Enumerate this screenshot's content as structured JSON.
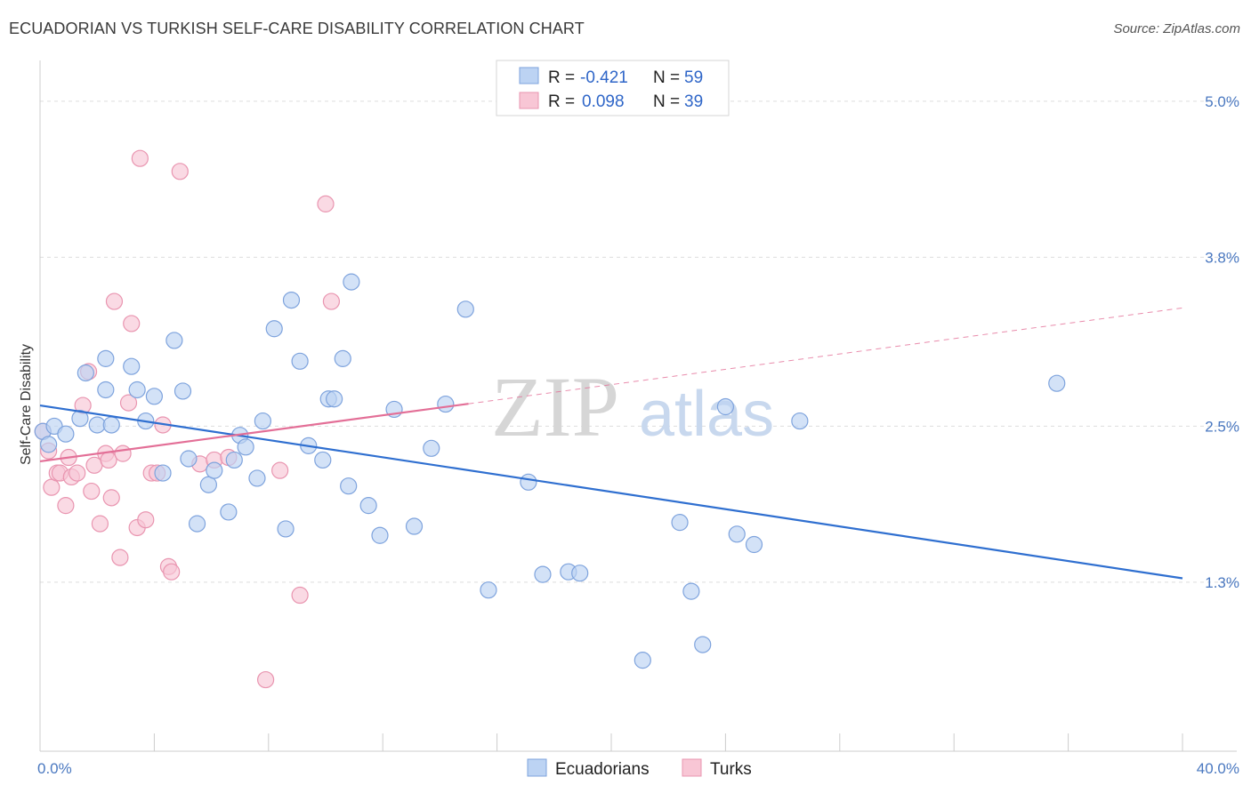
{
  "title": "ECUADORIAN VS TURKISH SELF-CARE DISABILITY CORRELATION CHART",
  "source": "Source: ZipAtlas.com",
  "watermark": {
    "zip": "ZIP",
    "atlas": "atlas"
  },
  "colors": {
    "ecuadorians_fill": "#bcd3f3",
    "ecuadorians_stroke": "#7ea3dd",
    "ecuadorians_line": "#2f6fd0",
    "turks_fill": "#f8c6d5",
    "turks_stroke": "#e995b0",
    "turks_line": "#e36f97",
    "tick_text": "#4a78c0",
    "grid": "#dddddd"
  },
  "legend": {
    "rows": [
      {
        "r_label": "R =",
        "r_value": "-0.421",
        "n_label": "N =",
        "n_value": "59"
      },
      {
        "r_label": "R =",
        "r_value": "0.098",
        "n_label": "N =",
        "n_value": "39"
      }
    ]
  },
  "bottom_legend": [
    "Ecuadorians",
    "Turks"
  ],
  "chart_data": {
    "type": "scatter",
    "ylabel": "Self-Care Disability",
    "xlim": [
      0,
      40
    ],
    "ylim": [
      0.0,
      5.3
    ],
    "x_tick_labels": [
      {
        "value": 0,
        "label": "0.0%"
      },
      {
        "value": 40,
        "label": "40.0%"
      }
    ],
    "y_tick_labels": [
      {
        "value": 1.3,
        "label": "1.3%"
      },
      {
        "value": 2.5,
        "label": "2.5%"
      },
      {
        "value": 3.8,
        "label": "3.8%"
      },
      {
        "value": 5.0,
        "label": "5.0%"
      }
    ],
    "x_minor_ticks": [
      0,
      4,
      8,
      12,
      16,
      20,
      24,
      28,
      32,
      36,
      40
    ],
    "grid": true,
    "series": [
      {
        "name": "Ecuadorians",
        "r": -0.421,
        "n": 59,
        "trend": {
          "x": [
            0,
            40
          ],
          "y": [
            2.66,
            1.33
          ]
        },
        "points": [
          [
            0.1,
            2.46
          ],
          [
            0.3,
            2.36
          ],
          [
            0.5,
            2.5
          ],
          [
            0.9,
            2.44
          ],
          [
            1.4,
            2.56
          ],
          [
            1.6,
            2.91
          ],
          [
            2.0,
            2.51
          ],
          [
            2.3,
            2.78
          ],
          [
            2.5,
            2.51
          ],
          [
            2.3,
            3.02
          ],
          [
            3.2,
            2.96
          ],
          [
            3.4,
            2.78
          ],
          [
            3.7,
            2.54
          ],
          [
            4.0,
            2.73
          ],
          [
            4.3,
            2.14
          ],
          [
            4.7,
            3.16
          ],
          [
            5.0,
            2.77
          ],
          [
            5.2,
            2.25
          ],
          [
            5.5,
            1.75
          ],
          [
            5.9,
            2.05
          ],
          [
            6.1,
            2.16
          ],
          [
            6.6,
            1.84
          ],
          [
            6.8,
            2.24
          ],
          [
            7.0,
            2.43
          ],
          [
            7.2,
            2.34
          ],
          [
            7.6,
            2.1
          ],
          [
            7.8,
            2.54
          ],
          [
            8.2,
            3.25
          ],
          [
            8.6,
            1.71
          ],
          [
            8.8,
            3.47
          ],
          [
            9.1,
            3.0
          ],
          [
            9.4,
            2.35
          ],
          [
            9.9,
            2.24
          ],
          [
            10.1,
            2.71
          ],
          [
            10.3,
            2.71
          ],
          [
            10.6,
            3.02
          ],
          [
            10.8,
            2.04
          ],
          [
            10.9,
            3.61
          ],
          [
            11.5,
            1.89
          ],
          [
            11.9,
            1.66
          ],
          [
            12.4,
            2.63
          ],
          [
            13.1,
            1.73
          ],
          [
            13.7,
            2.33
          ],
          [
            14.2,
            2.67
          ],
          [
            14.9,
            3.4
          ],
          [
            15.7,
            1.24
          ],
          [
            17.1,
            2.07
          ],
          [
            17.6,
            1.36
          ],
          [
            18.5,
            1.38
          ],
          [
            18.9,
            1.37
          ],
          [
            21.1,
            0.7
          ],
          [
            22.4,
            1.76
          ],
          [
            22.8,
            1.23
          ],
          [
            23.2,
            0.82
          ],
          [
            24.0,
            2.65
          ],
          [
            24.4,
            1.67
          ],
          [
            25.0,
            1.59
          ],
          [
            26.6,
            2.54
          ],
          [
            35.6,
            2.83
          ]
        ]
      },
      {
        "name": "Turks",
        "r": 0.098,
        "n": 39,
        "trend": {
          "x": [
            0,
            40
          ],
          "y": [
            2.23,
            3.41
          ]
        },
        "trend_solid_until_x": 15,
        "points": [
          [
            0.1,
            2.46
          ],
          [
            0.3,
            2.31
          ],
          [
            0.4,
            2.03
          ],
          [
            0.6,
            2.14
          ],
          [
            0.7,
            2.14
          ],
          [
            0.9,
            1.89
          ],
          [
            1.0,
            2.26
          ],
          [
            1.1,
            2.11
          ],
          [
            1.3,
            2.14
          ],
          [
            1.5,
            2.66
          ],
          [
            1.7,
            2.92
          ],
          [
            1.8,
            2.0
          ],
          [
            1.9,
            2.2
          ],
          [
            2.1,
            1.75
          ],
          [
            2.3,
            2.29
          ],
          [
            2.4,
            2.24
          ],
          [
            2.5,
            1.95
          ],
          [
            2.6,
            3.46
          ],
          [
            2.8,
            1.49
          ],
          [
            2.9,
            2.29
          ],
          [
            3.1,
            2.68
          ],
          [
            3.2,
            3.29
          ],
          [
            3.4,
            1.72
          ],
          [
            3.5,
            4.56
          ],
          [
            3.7,
            1.78
          ],
          [
            3.9,
            2.14
          ],
          [
            4.1,
            2.14
          ],
          [
            4.3,
            2.51
          ],
          [
            4.5,
            1.42
          ],
          [
            4.6,
            1.38
          ],
          [
            4.9,
            4.46
          ],
          [
            5.6,
            2.21
          ],
          [
            6.1,
            2.24
          ],
          [
            6.6,
            2.26
          ],
          [
            7.9,
            0.55
          ],
          [
            8.4,
            2.16
          ],
          [
            9.1,
            1.2
          ],
          [
            10.0,
            4.21
          ],
          [
            10.2,
            3.46
          ]
        ]
      }
    ]
  }
}
